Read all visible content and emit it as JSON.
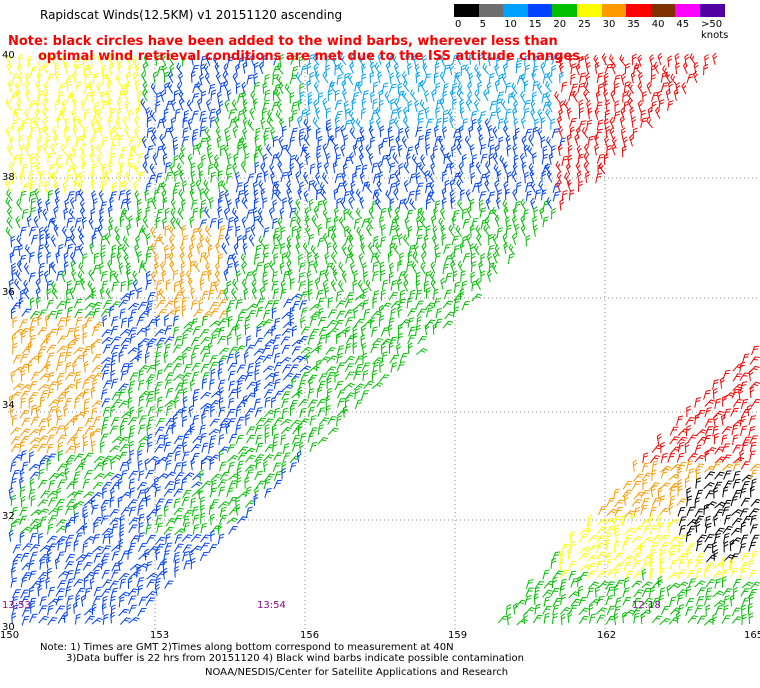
{
  "title": "Rapidscat Winds(12.5KM) v1 20151120 ascending",
  "note_line1": "Note: black circles have been added to the wind barbs, wherever less than",
  "note_line2": "optimal wind retrieval conditions are met due to the ISS attitude changes.",
  "legend": {
    "labels": [
      "0",
      "5",
      "10",
      "15",
      "20",
      "25",
      "30",
      "35",
      "40",
      "45",
      ">50 knots"
    ],
    "colors": [
      "#000000",
      "#6e6e6e",
      "#00a0ff",
      "#0040ff",
      "#00c000",
      "#ffff00",
      "#ff9900",
      "#ff0000",
      "#803000",
      "#ff00ff",
      "#5000a0"
    ]
  },
  "map": {
    "lat_labels": [
      "40",
      "38",
      "36",
      "34",
      "32",
      "30"
    ],
    "lon_labels": [
      "150",
      "153",
      "156",
      "159",
      "162",
      "165"
    ],
    "time_labels": [
      "13:53",
      "13:54",
      "12:18"
    ]
  },
  "footnote_line1": "Note: 1) Times are GMT 2)Times along bottom correspond to measurement at 40N",
  "footnote_line2": "3)Data buffer is 22 hrs from 20151120 4) Black wind barbs indicate possible contamination",
  "credit": "NOAA/NESDIS/Center for Satellite Applications and Research"
}
